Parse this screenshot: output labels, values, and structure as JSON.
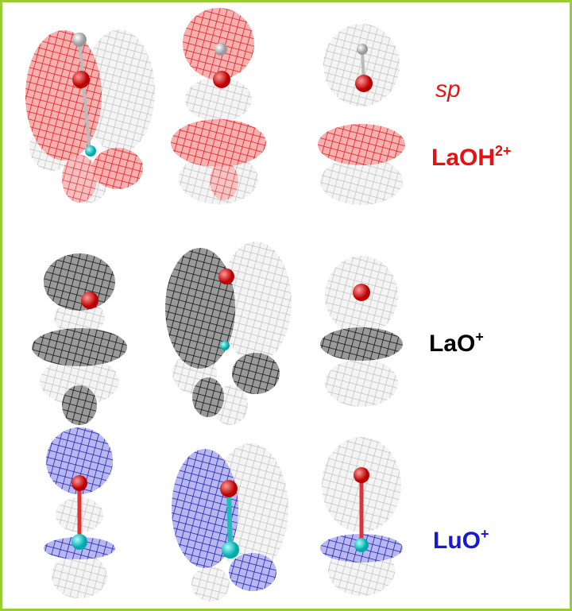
{
  "labels": {
    "hybrid": "sp",
    "rows": [
      {
        "formula": "LaOH",
        "charge": "2+"
      },
      {
        "formula": "LaO",
        "charge": "+"
      },
      {
        "formula": "LuO",
        "charge": "+"
      }
    ]
  }
}
